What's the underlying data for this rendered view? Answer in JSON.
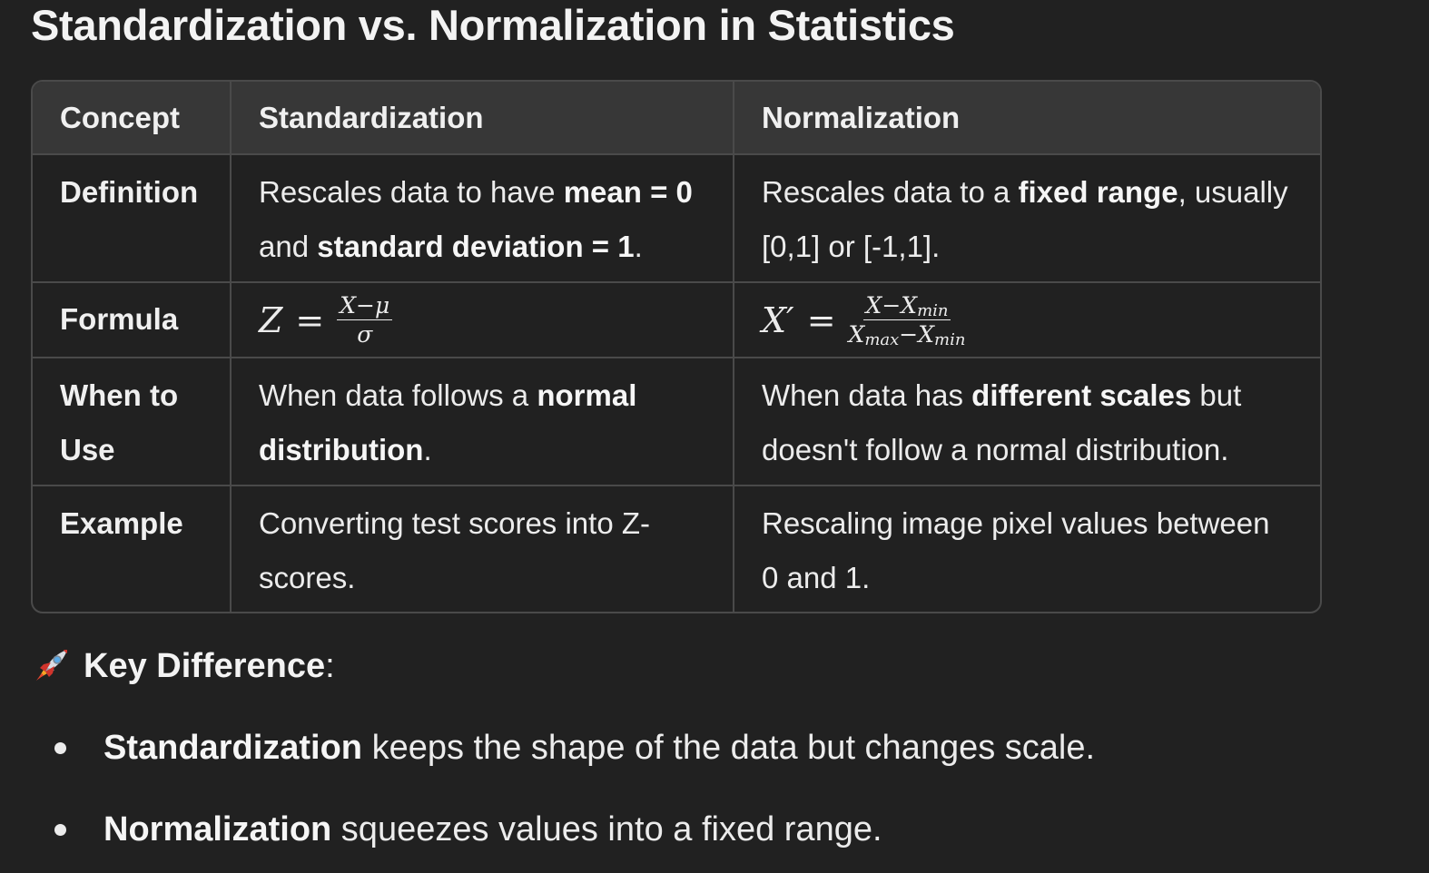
{
  "title": "Standardization vs. Normalization in Statistics",
  "table": {
    "headers": [
      "Concept",
      "Standardization",
      "Normalization"
    ],
    "rows": {
      "definition": {
        "concept": "Definition",
        "standardization": {
          "t1": "Rescales data to have ",
          "b1": "mean = 0",
          "t2": " and ",
          "b2": "standard deviation = 1",
          "t3": "."
        },
        "normalization": {
          "t1": "Rescales data to a ",
          "b1": "fixed range",
          "t2": ", usually [0,1] or [-1,1]."
        }
      },
      "formula": {
        "concept": "Formula",
        "standardization": {
          "lhs": "Z",
          "eq": "=",
          "numerator": "X−μ",
          "denominator": "σ"
        },
        "normalization": {
          "lhs": "X′",
          "eq": "=",
          "num_a": "X−X",
          "num_sub": "min",
          "den_a": "X",
          "den_sub_a": "max",
          "den_b": "−X",
          "den_sub_b": "min"
        }
      },
      "when": {
        "concept": "When to Use",
        "standardization": {
          "t1": "When data follows a ",
          "b1": "normal distribution",
          "t2": "."
        },
        "normalization": {
          "t1": "When data has ",
          "b1": "different scales",
          "t2": " but doesn't follow a normal distribution."
        }
      },
      "example": {
        "concept": "Example",
        "standardization": "Converting test scores into Z-scores.",
        "normalization": "Rescaling image pixel values between 0 and 1."
      }
    }
  },
  "key_difference": {
    "icon": "rocket-icon",
    "label": "Key Difference",
    "colon": ":"
  },
  "bullets": [
    {
      "bold": "Standardization",
      "text": " keeps the shape of the data but changes scale."
    },
    {
      "bold": "Normalization",
      "text": " squeezes values into a fixed range."
    }
  ]
}
